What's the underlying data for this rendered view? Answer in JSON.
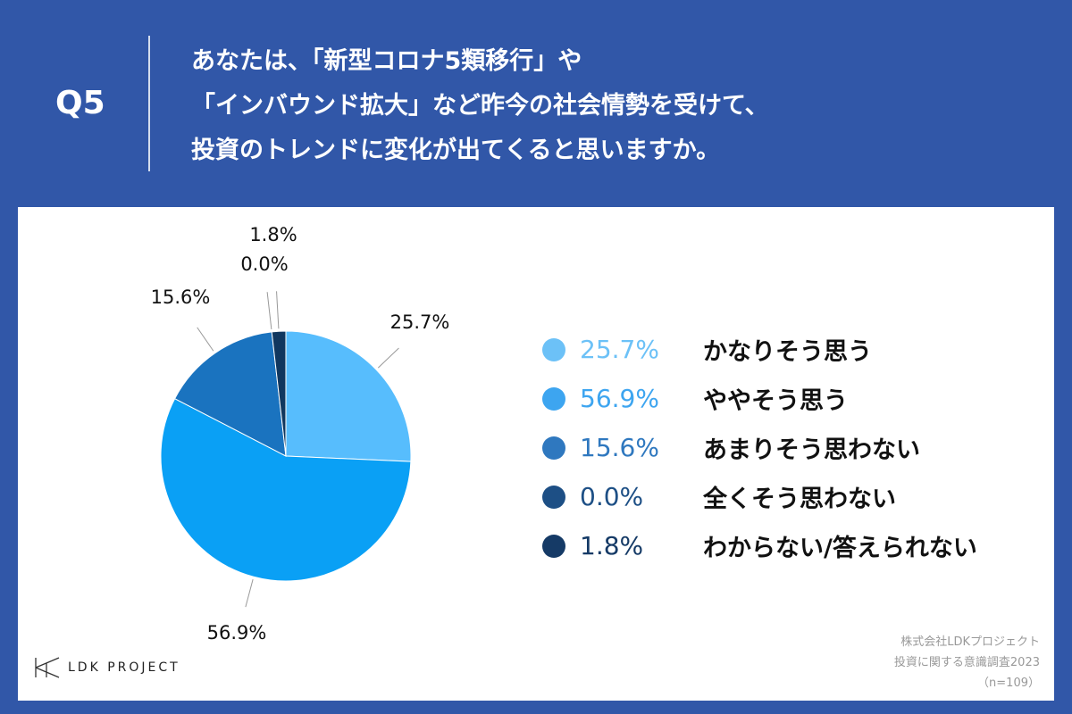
{
  "header": {
    "q": "Q5",
    "title_lines": [
      "あなたは、「新型コロナ5類移行」や",
      "「インバウンド拡大」など昨今の社会情勢を受けて、",
      "投資のトレンドに変化が出てくると思いますか。"
    ]
  },
  "chart_data": {
    "type": "pie",
    "title": "",
    "start": "top",
    "direction": "clockwise",
    "slices": [
      {
        "label": "かなりそう思う",
        "value": 25.7,
        "display": "25.7%",
        "color": "#57bdfd",
        "legend_color": "#6cc1f7"
      },
      {
        "label": "ややそう思う",
        "value": 56.9,
        "display": "56.9%",
        "color": "#0aa0f5",
        "legend_color": "#3da5f0"
      },
      {
        "label": "あまりそう思わない",
        "value": 15.6,
        "display": "15.6%",
        "color": "#1a73bf",
        "legend_color": "#2f78bf"
      },
      {
        "label": "全くそう思わない",
        "value": 0.0,
        "display": "0.0%",
        "color": "#1d4f85",
        "legend_color": "#1d4f85"
      },
      {
        "label": "わからない/答えられない",
        "value": 1.8,
        "display": "1.8%",
        "color": "#10375f",
        "legend_color": "#153a66"
      }
    ]
  },
  "footer": {
    "logo": "LDK PROJECT",
    "credit": [
      "株式会社LDKプロジェクト",
      "投資に関する意識調査2023",
      "（n=109）"
    ]
  }
}
